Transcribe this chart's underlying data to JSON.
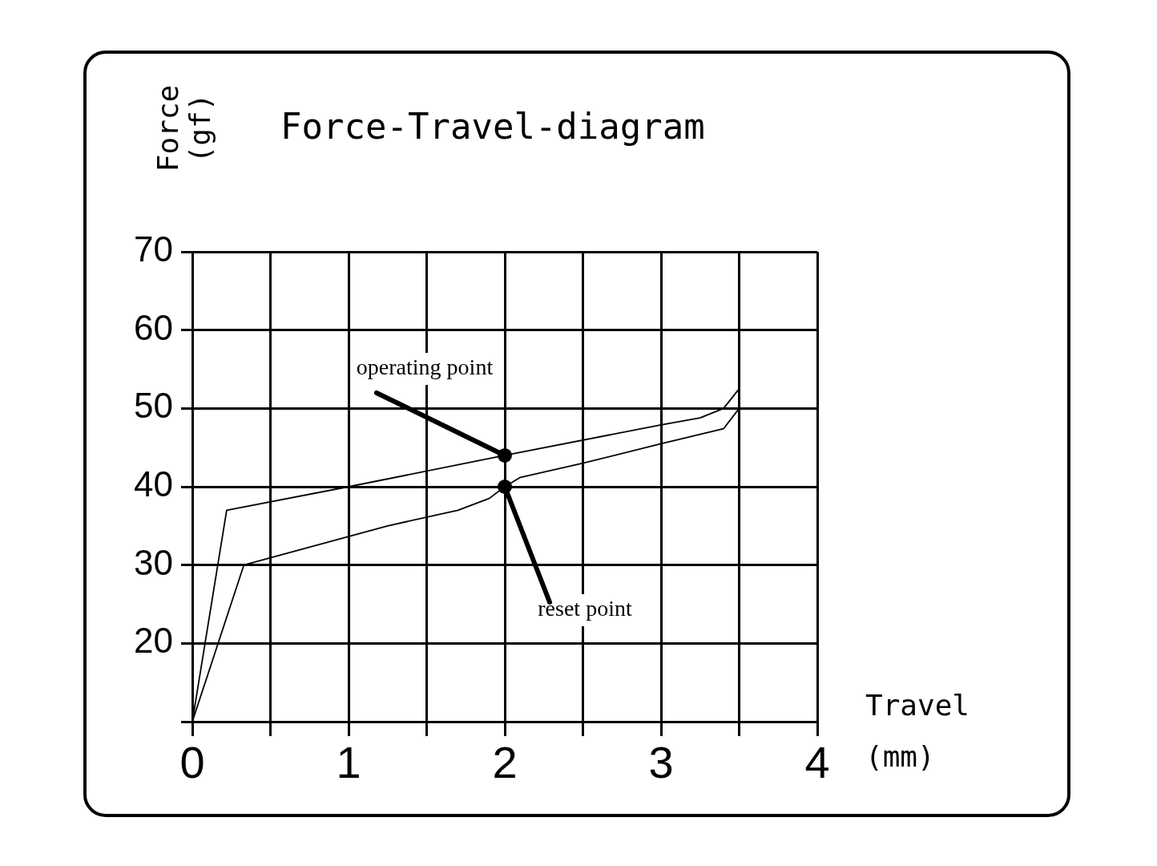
{
  "chart_data": {
    "type": "line",
    "title": "Force-Travel-diagram",
    "xlabel": "Travel (mm)",
    "ylabel": "Force (gf)",
    "xlim": [
      0,
      4
    ],
    "xticks": [
      0,
      {
        "value": 0.5,
        "label": null
      },
      1,
      {
        "value": 1.5,
        "label": null
      },
      2,
      {
        "value": 2.5,
        "label": null
      },
      3,
      {
        "value": 3.5,
        "label": null
      },
      4
    ],
    "ylim": [
      10,
      70
    ],
    "yticks": [
      {
        "value": 10,
        "label": null
      },
      20,
      30,
      40,
      50,
      60,
      70
    ],
    "grid": true,
    "legend": false,
    "marker": "none",
    "line_style": "solid",
    "series": [
      {
        "color": "#000000",
        "x": [
          0,
          0.22,
          1,
          2,
          3,
          3.25,
          3.4,
          3.5
        ],
        "values": [
          10,
          37,
          40,
          44,
          47.9,
          48.8,
          50,
          52.5
        ]
      },
      {
        "color": "#000000",
        "x": [
          0,
          0.33,
          1.25,
          1.7,
          1.9,
          2,
          2.1,
          2.5,
          3,
          3.4,
          3.5
        ],
        "values": [
          10,
          30,
          35,
          37,
          38.5,
          40,
          41.2,
          43,
          45.5,
          47.4,
          50
        ]
      }
    ],
    "annotations": [
      {
        "text": "operating point",
        "x": 2,
        "y": 44
      },
      {
        "text": "reset point",
        "x": 2,
        "y": 40
      }
    ]
  }
}
